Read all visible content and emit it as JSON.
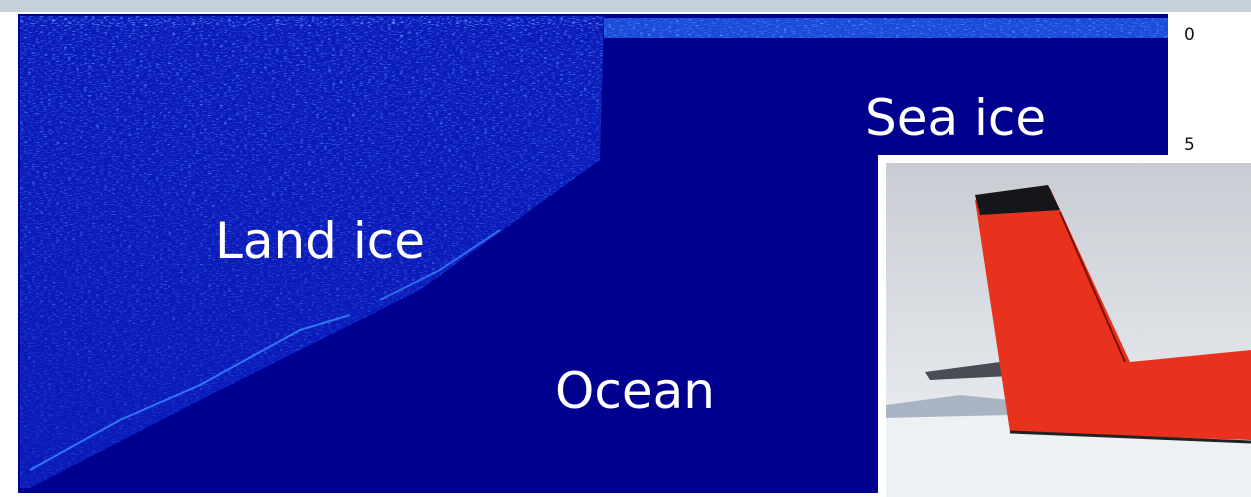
{
  "labels": {
    "land_ice": "Land ice",
    "sea_ice": "Sea ice",
    "ocean": "Ocean"
  },
  "depth_ticks": [
    0,
    5
  ]
}
